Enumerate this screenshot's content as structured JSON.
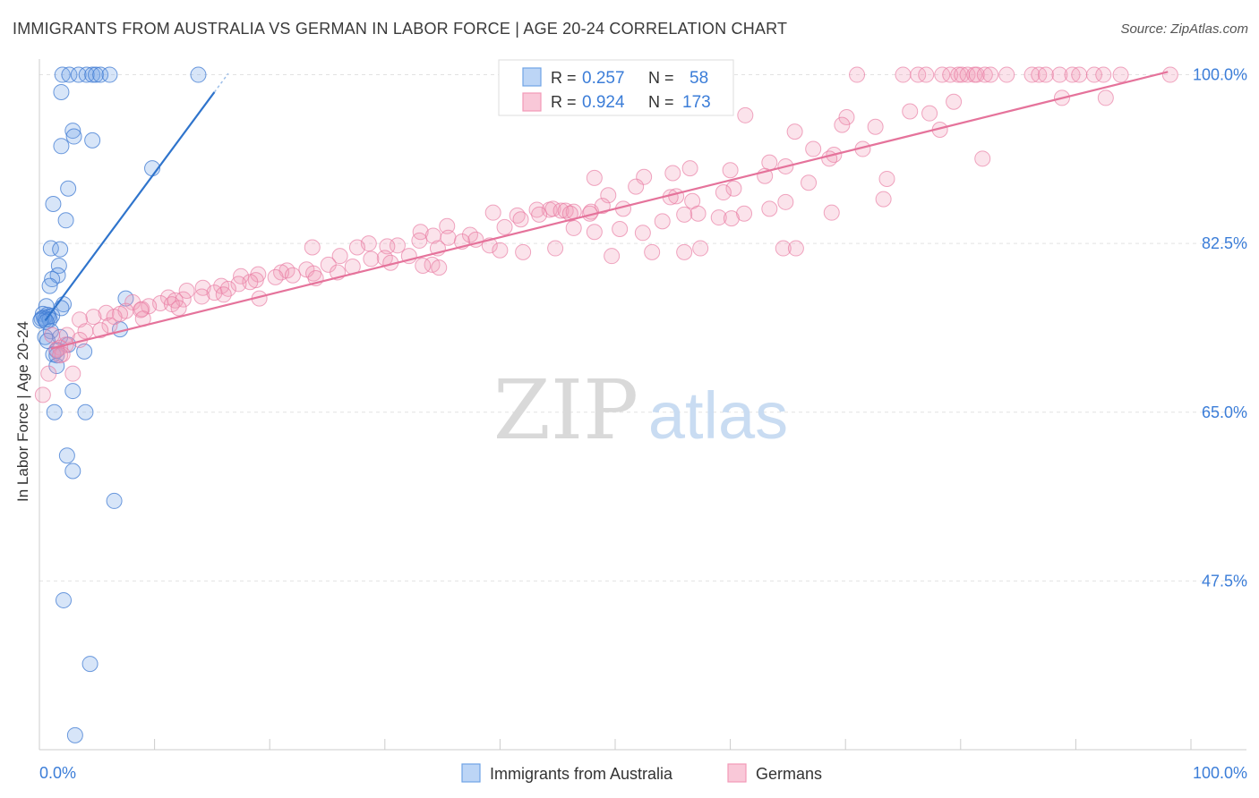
{
  "title": "IMMIGRANTS FROM AUSTRALIA VS GERMAN IN LABOR FORCE | AGE 20-24 CORRELATION CHART",
  "source": "Source: ZipAtlas.com",
  "watermark": {
    "zip": "ZIP",
    "atlas": "atlas"
  },
  "colors": {
    "blue": "#6fa3e6",
    "blue_line": "#2f74cc",
    "pink": "#f29ab8",
    "pink_line": "#e5739b",
    "value_text": "#3b7dd8"
  },
  "legend_box": {
    "rows": [
      {
        "r_label": "R =",
        "r_value": "0.257",
        "n_label": "N =",
        "n_value": "58"
      },
      {
        "r_label": "R =",
        "r_value": "0.924",
        "n_label": "N =",
        "n_value": "173"
      }
    ]
  },
  "bottom_legend": [
    "Immigrants from Australia",
    "Germans"
  ],
  "chart_data": {
    "type": "scatter",
    "title": "IMMIGRANTS FROM AUSTRALIA VS GERMAN IN LABOR FORCE | AGE 20-24 CORRELATION CHART",
    "xlabel": "",
    "ylabel": "In Labor Force | Age 20-24",
    "xlim": [
      0,
      100
    ],
    "ylim": [
      30,
      102
    ],
    "x_tick_labels": [
      "0.0%",
      "100.0%"
    ],
    "y_ticks": [
      100,
      82.5,
      65,
      47.5
    ],
    "y_tick_labels": [
      "100.0%",
      "82.5%",
      "65.0%",
      "47.5%"
    ],
    "grid": true,
    "legend_position": "bottom",
    "series": [
      {
        "name": "Immigrants from Australia",
        "color": "#6fa3e6",
        "trend": [
          [
            0.5,
            74.5
          ],
          [
            15.2,
            98.2
          ]
        ],
        "points": [
          [
            2.0,
            100
          ],
          [
            2.6,
            100
          ],
          [
            3.4,
            100
          ],
          [
            4.1,
            100
          ],
          [
            4.6,
            100
          ],
          [
            4.9,
            100
          ],
          [
            5.3,
            100
          ],
          [
            6.1,
            100
          ],
          [
            13.8,
            100
          ],
          [
            1.9,
            98.2
          ],
          [
            2.9,
            94.2
          ],
          [
            3.0,
            93.6
          ],
          [
            4.6,
            93.2
          ],
          [
            1.9,
            92.6
          ],
          [
            9.8,
            90.3
          ],
          [
            2.5,
            88.2
          ],
          [
            1.2,
            86.6
          ],
          [
            2.3,
            84.9
          ],
          [
            1.0,
            82.0
          ],
          [
            1.8,
            81.9
          ],
          [
            1.7,
            80.2
          ],
          [
            1.6,
            79.2
          ],
          [
            1.1,
            78.8
          ],
          [
            0.9,
            78.1
          ],
          [
            7.5,
            76.8
          ],
          [
            2.1,
            76.2
          ],
          [
            0.6,
            76.0
          ],
          [
            1.9,
            75.8
          ],
          [
            0.3,
            75.2
          ],
          [
            0.7,
            75.1
          ],
          [
            1.1,
            75.0
          ],
          [
            0.8,
            74.9
          ],
          [
            0.4,
            74.8
          ],
          [
            0.2,
            74.7
          ],
          [
            0.5,
            74.6
          ],
          [
            0.9,
            74.6
          ],
          [
            0.1,
            74.5
          ],
          [
            0.6,
            74.4
          ],
          [
            7.0,
            73.6
          ],
          [
            1.0,
            73.4
          ],
          [
            0.5,
            72.8
          ],
          [
            1.8,
            72.8
          ],
          [
            0.7,
            72.4
          ],
          [
            2.5,
            72.0
          ],
          [
            1.5,
            71.4
          ],
          [
            3.9,
            71.3
          ],
          [
            1.2,
            71.0
          ],
          [
            1.5,
            70.9
          ],
          [
            1.5,
            69.8
          ],
          [
            2.9,
            67.2
          ],
          [
            1.3,
            65.0
          ],
          [
            4.0,
            65.0
          ],
          [
            2.4,
            60.5
          ],
          [
            2.9,
            58.9
          ],
          [
            6.5,
            55.8
          ],
          [
            2.1,
            45.5
          ],
          [
            4.4,
            38.9
          ],
          [
            3.1,
            31.5
          ]
        ]
      },
      {
        "name": "Germans",
        "color": "#f29ab8",
        "trend": [
          [
            1.0,
            71.6
          ],
          [
            98.0,
            100.3
          ]
        ],
        "points": [
          [
            71.0,
            100
          ],
          [
            75.0,
            100
          ],
          [
            76.3,
            100
          ],
          [
            77.0,
            100
          ],
          [
            78.4,
            100
          ],
          [
            79.1,
            100
          ],
          [
            79.8,
            100
          ],
          [
            80.1,
            100
          ],
          [
            80.6,
            100
          ],
          [
            81.2,
            100
          ],
          [
            81.4,
            100
          ],
          [
            82.1,
            100
          ],
          [
            82.6,
            100
          ],
          [
            84.0,
            100
          ],
          [
            86.2,
            100
          ],
          [
            86.8,
            100
          ],
          [
            87.4,
            100
          ],
          [
            88.6,
            100
          ],
          [
            89.7,
            100
          ],
          [
            90.3,
            100
          ],
          [
            91.6,
            100
          ],
          [
            92.4,
            100
          ],
          [
            93.9,
            100
          ],
          [
            98.2,
            100
          ],
          [
            92.6,
            97.6
          ],
          [
            88.8,
            97.6
          ],
          [
            79.4,
            97.2
          ],
          [
            75.6,
            96.2
          ],
          [
            77.3,
            96.0
          ],
          [
            70.1,
            95.6
          ],
          [
            61.3,
            95.8
          ],
          [
            72.6,
            94.6
          ],
          [
            69.7,
            94.8
          ],
          [
            78.2,
            94.3
          ],
          [
            65.6,
            94.1
          ],
          [
            67.2,
            92.3
          ],
          [
            71.5,
            92.3
          ],
          [
            69.0,
            91.7
          ],
          [
            68.6,
            91.3
          ],
          [
            81.9,
            91.3
          ],
          [
            63.4,
            90.9
          ],
          [
            64.8,
            90.5
          ],
          [
            56.5,
            90.3
          ],
          [
            60.0,
            90.1
          ],
          [
            55.0,
            89.8
          ],
          [
            63.0,
            89.5
          ],
          [
            52.5,
            89.4
          ],
          [
            48.2,
            89.3
          ],
          [
            73.6,
            89.2
          ],
          [
            66.8,
            88.8
          ],
          [
            51.8,
            88.4
          ],
          [
            60.3,
            88.2
          ],
          [
            59.4,
            87.8
          ],
          [
            49.4,
            87.5
          ],
          [
            55.3,
            87.4
          ],
          [
            54.8,
            87.3
          ],
          [
            73.3,
            87.1
          ],
          [
            56.7,
            86.9
          ],
          [
            64.8,
            86.8
          ],
          [
            48.9,
            86.4
          ],
          [
            50.7,
            86.1
          ],
          [
            63.4,
            86.1
          ],
          [
            44.3,
            86.0
          ],
          [
            44.6,
            86.1
          ],
          [
            43.2,
            86.0
          ],
          [
            45.3,
            85.9
          ],
          [
            45.7,
            85.9
          ],
          [
            46.4,
            85.8
          ],
          [
            47.9,
            85.8
          ],
          [
            46.1,
            85.6
          ],
          [
            47.8,
            85.6
          ],
          [
            61.2,
            85.6
          ],
          [
            57.2,
            85.6
          ],
          [
            68.8,
            85.7
          ],
          [
            39.4,
            85.7
          ],
          [
            43.4,
            85.5
          ],
          [
            41.5,
            85.4
          ],
          [
            56.0,
            85.5
          ],
          [
            59.0,
            85.2
          ],
          [
            41.8,
            85.0
          ],
          [
            60.1,
            85.1
          ],
          [
            54.1,
            84.8
          ],
          [
            35.4,
            84.3
          ],
          [
            50.4,
            84.0
          ],
          [
            40.4,
            84.2
          ],
          [
            46.4,
            84.1
          ],
          [
            33.1,
            83.7
          ],
          [
            48.2,
            83.7
          ],
          [
            37.4,
            83.4
          ],
          [
            52.4,
            83.6
          ],
          [
            34.2,
            83.3
          ],
          [
            35.5,
            83.1
          ],
          [
            37.9,
            82.9
          ],
          [
            33.0,
            82.8
          ],
          [
            36.7,
            82.7
          ],
          [
            28.6,
            82.5
          ],
          [
            39.1,
            82.3
          ],
          [
            31.1,
            82.3
          ],
          [
            30.2,
            82.2
          ],
          [
            23.7,
            82.1
          ],
          [
            27.6,
            82.1
          ],
          [
            34.6,
            82.0
          ],
          [
            64.6,
            82.0
          ],
          [
            44.8,
            82.0
          ],
          [
            65.7,
            82.0
          ],
          [
            57.4,
            82.0
          ],
          [
            40.0,
            81.8
          ],
          [
            42.0,
            81.6
          ],
          [
            53.2,
            81.6
          ],
          [
            56.0,
            81.6
          ],
          [
            49.7,
            81.2
          ],
          [
            26.1,
            81.2
          ],
          [
            32.1,
            81.2
          ],
          [
            30.0,
            81.0
          ],
          [
            28.8,
            80.9
          ],
          [
            30.5,
            80.5
          ],
          [
            25.1,
            80.3
          ],
          [
            34.1,
            80.3
          ],
          [
            33.3,
            80.2
          ],
          [
            27.2,
            80.1
          ],
          [
            34.7,
            80.0
          ],
          [
            23.2,
            79.8
          ],
          [
            21.5,
            79.7
          ],
          [
            25.9,
            79.5
          ],
          [
            21.0,
            79.5
          ],
          [
            23.8,
            79.4
          ],
          [
            19.0,
            79.3
          ],
          [
            22.0,
            79.2
          ],
          [
            17.5,
            79.1
          ],
          [
            20.5,
            79.0
          ],
          [
            24.0,
            78.9
          ],
          [
            18.8,
            78.7
          ],
          [
            18.3,
            78.5
          ],
          [
            17.3,
            78.3
          ],
          [
            15.8,
            78.1
          ],
          [
            14.2,
            77.9
          ],
          [
            16.4,
            77.8
          ],
          [
            12.8,
            77.6
          ],
          [
            15.2,
            77.4
          ],
          [
            16.0,
            77.2
          ],
          [
            14.1,
            77.0
          ],
          [
            11.2,
            76.9
          ],
          [
            19.1,
            76.8
          ],
          [
            12.5,
            76.7
          ],
          [
            11.8,
            76.6
          ],
          [
            8.1,
            76.4
          ],
          [
            10.5,
            76.3
          ],
          [
            11.5,
            76.2
          ],
          [
            9.5,
            76.0
          ],
          [
            8.9,
            75.7
          ],
          [
            12.1,
            75.8
          ],
          [
            8.8,
            75.6
          ],
          [
            7.5,
            75.5
          ],
          [
            5.8,
            75.3
          ],
          [
            7.0,
            75.2
          ],
          [
            4.7,
            74.9
          ],
          [
            6.5,
            74.9
          ],
          [
            9.0,
            74.7
          ],
          [
            3.5,
            74.6
          ],
          [
            6.1,
            74.0
          ],
          [
            5.3,
            73.5
          ],
          [
            4.0,
            73.4
          ],
          [
            2.4,
            73.0
          ],
          [
            1.1,
            73.0
          ],
          [
            3.5,
            72.5
          ],
          [
            2.3,
            72.0
          ],
          [
            1.8,
            71.7
          ],
          [
            1.5,
            71.5
          ],
          [
            2.0,
            71.0
          ],
          [
            1.8,
            70.9
          ],
          [
            0.8,
            69.0
          ],
          [
            2.9,
            69.0
          ],
          [
            0.3,
            66.8
          ]
        ]
      }
    ]
  }
}
